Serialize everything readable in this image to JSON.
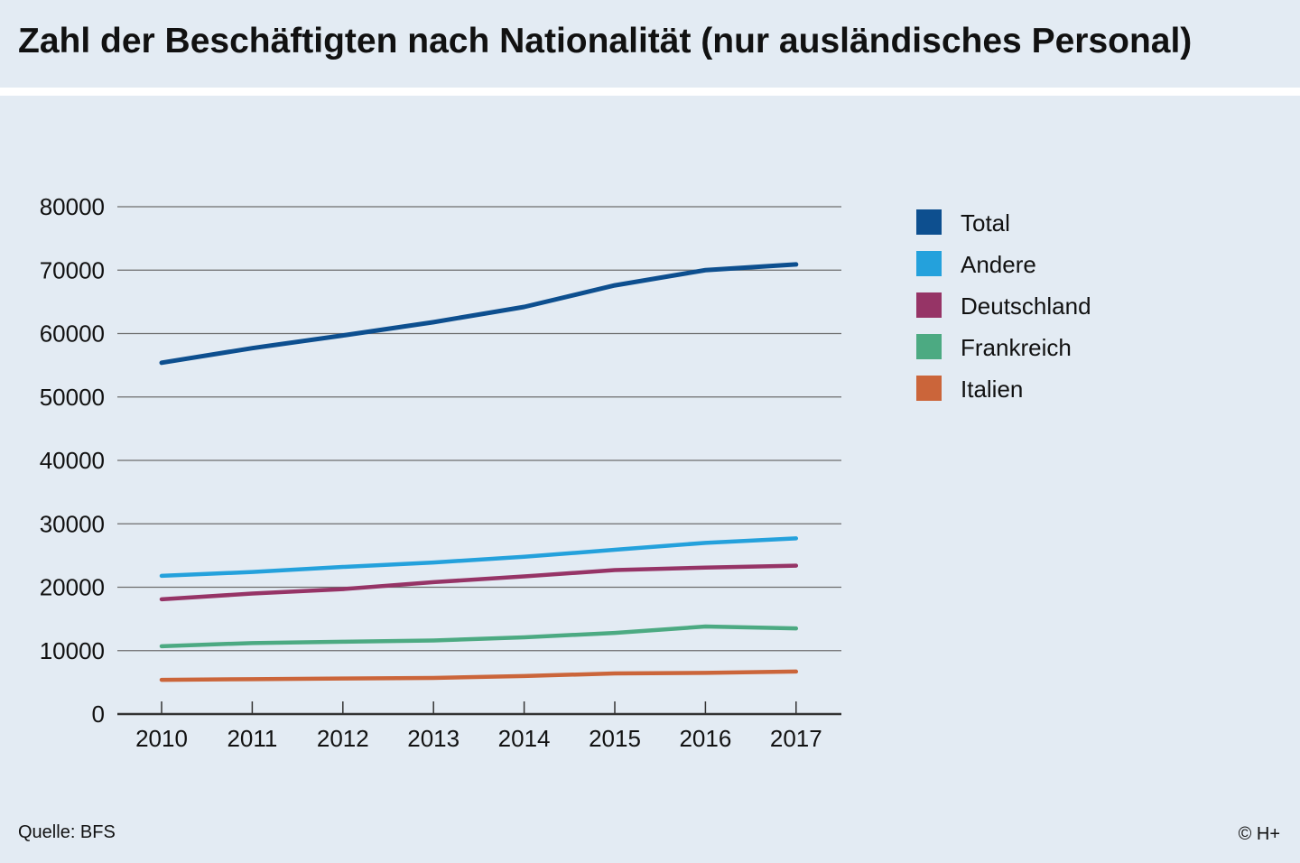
{
  "title": "Zahl der Beschäftigten nach Nationalität (nur ausländisches Personal)",
  "source": "Quelle: BFS",
  "copyright": "© H+",
  "chart_data": {
    "type": "line",
    "title": "Zahl der Beschäftigten nach Nationalität (nur ausländisches Personal)",
    "xlabel": "",
    "ylabel": "",
    "x": [
      "2010",
      "2011",
      "2012",
      "2013",
      "2014",
      "2015",
      "2016",
      "2017"
    ],
    "ylim": [
      0,
      80000
    ],
    "yticks": [
      "0",
      "10000",
      "20000",
      "30000",
      "40000",
      "50000",
      "60000",
      "70000",
      "80000"
    ],
    "grid": "horizontal",
    "legend_position": "right",
    "series": [
      {
        "name": "Total",
        "color": "#0d4f8f",
        "values": [
          55400,
          57700,
          59700,
          61800,
          64200,
          67600,
          70000,
          70900
        ]
      },
      {
        "name": "Andere",
        "color": "#24a1dc",
        "values": [
          21800,
          22400,
          23200,
          23900,
          24800,
          25900,
          27000,
          27700
        ]
      },
      {
        "name": "Deutschland",
        "color": "#963466",
        "values": [
          18100,
          19000,
          19700,
          20800,
          21700,
          22700,
          23100,
          23400
        ]
      },
      {
        "name": "Frankreich",
        "color": "#4caa82",
        "values": [
          10700,
          11200,
          11400,
          11600,
          12100,
          12800,
          13800,
          13500
        ]
      },
      {
        "name": "Italien",
        "color": "#cb653a",
        "values": [
          5400,
          5500,
          5600,
          5700,
          6000,
          6400,
          6500,
          6700
        ]
      }
    ]
  }
}
